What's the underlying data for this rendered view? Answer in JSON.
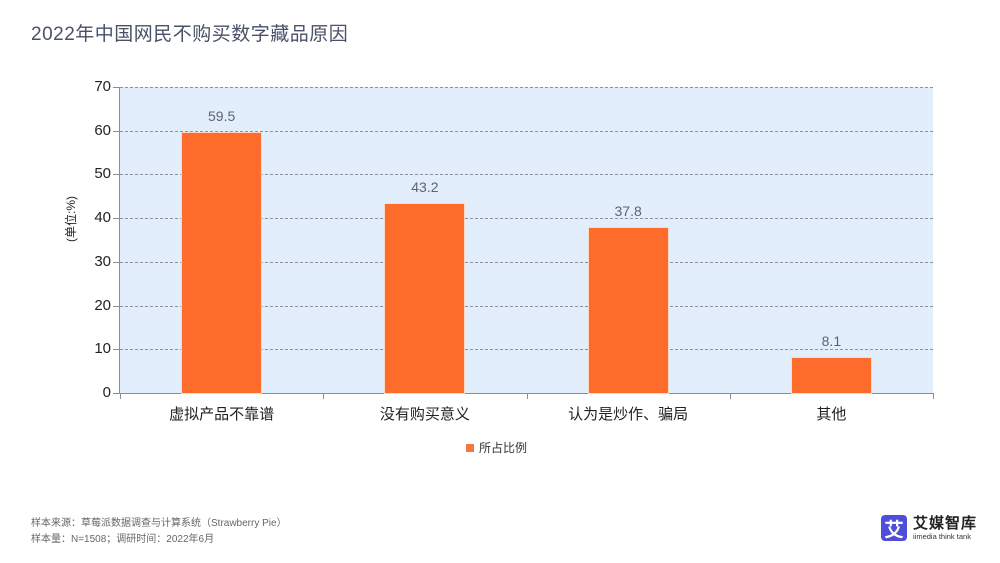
{
  "title": "2022年中国网民不购买数字藏品原因",
  "y_unit_label": "(单位:%)",
  "legend": {
    "label": "所占比例",
    "color": "#ef7a3e"
  },
  "footnotes": {
    "source": "样本来源：草莓派数据调查与计算系统（Strawberry Pie）",
    "sample": "样本量：N=1508；调研时间：2022年6月"
  },
  "logo": {
    "mark": "艾",
    "name_cn": "艾媒智库",
    "name_en": "iimedia think tank"
  },
  "colors": {
    "bar": "#fe6c2b",
    "plot_bg": "#e2eefb",
    "title": "#4a5068",
    "logo": "#4f4ed9"
  },
  "chart_data": {
    "type": "bar",
    "title": "2022年中国网民不购买数字藏品原因",
    "xlabel": "",
    "ylabel": "(单位:%)",
    "categories": [
      "虚拟产品不靠谱",
      "没有购买意义",
      "认为是炒作、骗局",
      "其他"
    ],
    "series": [
      {
        "name": "所占比例",
        "values": [
          59.5,
          43.2,
          37.8,
          8.1
        ]
      }
    ],
    "value_labels": [
      "59.5",
      "43.2",
      "37.8",
      "8.1"
    ],
    "ylim": [
      0,
      70
    ],
    "yticks": [
      "0",
      "10",
      "20",
      "30",
      "40",
      "50",
      "60",
      "70"
    ],
    "grid": true,
    "grid_style": "dashed",
    "legend_position": "bottom"
  }
}
